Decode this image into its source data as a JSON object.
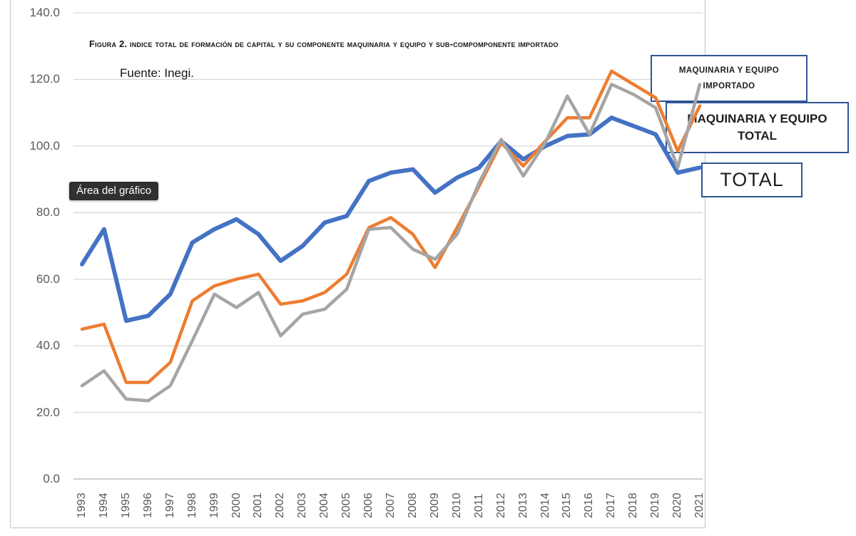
{
  "figure": {
    "title": "Figura 2. indice total de formación de capital y su componente maquinaria y equipo  y sub-compomponente importado",
    "source": "Fuente: Inegi.",
    "chart_area_tooltip": "Área del gráfico"
  },
  "legend_boxes": {
    "importado": {
      "line1": "MAQUINARIA Y EQUIPO",
      "line2": "IMPORTADO"
    },
    "maquinaria_total": {
      "line1": "MAQUINARIA Y EQUIPO",
      "line2": "TOTAL"
    },
    "total": {
      "line1": "TOTAL"
    }
  },
  "colors": {
    "total_line": "#4472C4",
    "maquinaria_total_line": "#ED7D31",
    "importado_line": "#A5A5A5",
    "legend_border": "#2F5496",
    "gridline": "#D9D9D9",
    "axis_line": "#BFBFBF",
    "tick_text": "#595959",
    "tooltip_bg": "#303030"
  },
  "chart_data": {
    "type": "line",
    "title": "Figura 2. indice total de formación de capital y su componente maquinaria y equipo  y sub-compomponente importado",
    "source": "Fuente: Inegi.",
    "x": [
      "1993",
      "1994",
      "1995",
      "1996",
      "1997",
      "1998",
      "1999",
      "2000",
      "2001",
      "2002",
      "2003",
      "2004",
      "2005",
      "2006",
      "2007",
      "2008",
      "2009",
      "2010",
      "2011",
      "2012",
      "2013",
      "2014",
      "2015",
      "2016",
      "2017",
      "2018",
      "2019",
      "2020",
      "2021"
    ],
    "series": [
      {
        "name": "TOTAL",
        "color": "#4472C4",
        "stroke_width": 6,
        "values": [
          64.5,
          75,
          47.5,
          49,
          55.5,
          71,
          75,
          78,
          73.5,
          65.5,
          70,
          77,
          79,
          89.5,
          92,
          93,
          86,
          90.5,
          93.5,
          101.5,
          96,
          100,
          103,
          103.5,
          108.5,
          106,
          103.5,
          92,
          93.5
        ]
      },
      {
        "name": "MAQUINARIA Y EQUIPO TOTAL",
        "color": "#ED7D31",
        "stroke_width": 4.5,
        "values": [
          45,
          46.5,
          29,
          29,
          35,
          53.5,
          58,
          60,
          61.5,
          52.5,
          53.5,
          56,
          61.5,
          75.5,
          78.5,
          73.5,
          63.5,
          75.5,
          88,
          101,
          94,
          101.5,
          108.5,
          108.5,
          122.5,
          118.5,
          114.5,
          98.5,
          112
        ]
      },
      {
        "name": "MAQUINARIA Y EQUIPO IMPORTADO",
        "color": "#A5A5A5",
        "stroke_width": 4.5,
        "values": [
          28,
          32.5,
          24,
          23.5,
          28,
          41.5,
          55.5,
          51.5,
          56,
          43,
          49.5,
          51,
          57,
          75,
          75.5,
          69,
          66,
          73.5,
          89,
          102,
          91,
          101,
          115,
          103.5,
          118.5,
          115.5,
          111.5,
          93.5,
          118.5
        ]
      }
    ],
    "ylim": [
      0,
      140
    ],
    "ytick_values": [
      140,
      120,
      100,
      80,
      60,
      40,
      20,
      0
    ],
    "ytick_labels": [
      "140.0",
      "120.0",
      "100.0",
      "80.0",
      "60.0",
      "40.0",
      "20.0",
      "0.0"
    ],
    "grid": true,
    "legend_position": "floating-text-boxes-right"
  }
}
